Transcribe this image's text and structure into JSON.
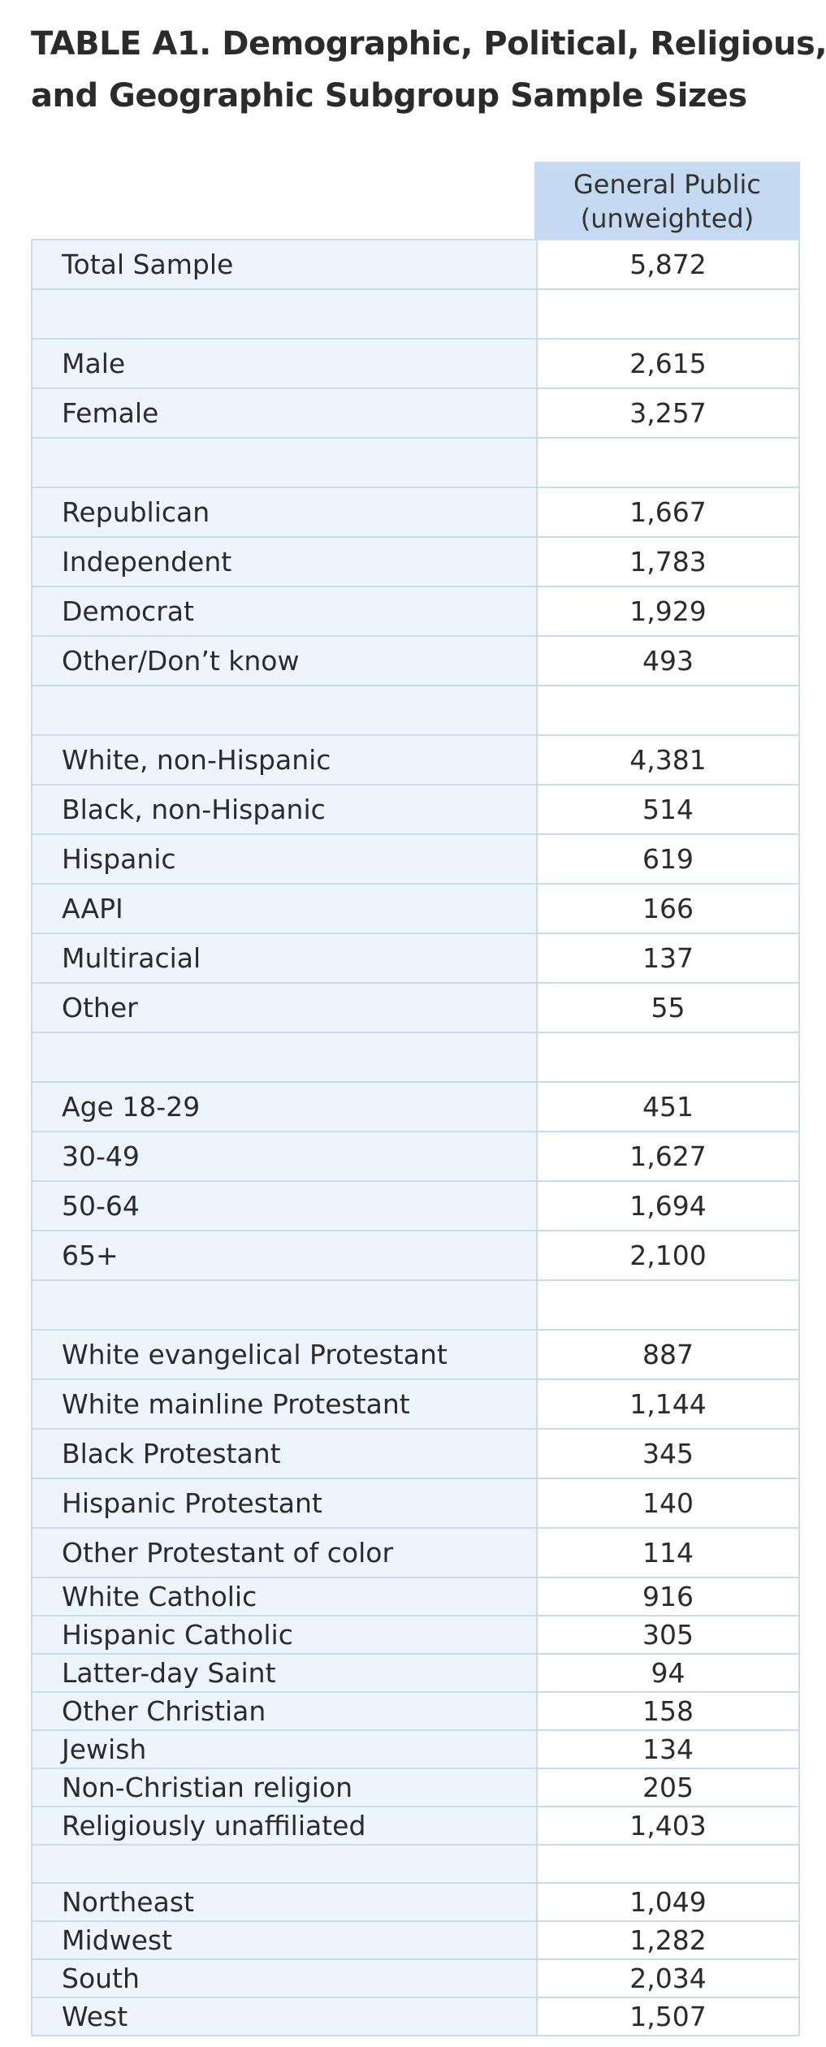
{
  "title": {
    "line1": "TABLE A1. Demographic, Political, Religious,",
    "line2": "and Geographic Subgroup Sample Sizes"
  },
  "column_header": {
    "line1": "General Public",
    "line2": "(unweighted)"
  },
  "colors": {
    "header_fill": "#c5daf0",
    "row_fill": "#eef4fc",
    "border": "#c9dbee"
  },
  "rows": [
    {
      "label": "Total Sample",
      "value": "5,872"
    },
    {
      "label": "",
      "value": ""
    },
    {
      "label": "Male",
      "value": "2,615"
    },
    {
      "label": "Female",
      "value": "3,257"
    },
    {
      "label": "",
      "value": ""
    },
    {
      "label": "Republican",
      "value": "1,667"
    },
    {
      "label": "Independent",
      "value": "1,783"
    },
    {
      "label": "Democrat",
      "value": "1,929"
    },
    {
      "label": "Other/Don’t know",
      "value": "493"
    },
    {
      "label": "",
      "value": ""
    },
    {
      "label": "White, non-Hispanic",
      "value": "4,381"
    },
    {
      "label": "Black, non-Hispanic",
      "value": "514"
    },
    {
      "label": "Hispanic",
      "value": "619"
    },
    {
      "label": "AAPI",
      "value": "166"
    },
    {
      "label": "Multiracial",
      "value": "137"
    },
    {
      "label": "Other",
      "value": "55"
    },
    {
      "label": "",
      "value": ""
    },
    {
      "label": "Age 18-29",
      "value": "451"
    },
    {
      "label": "30-49",
      "value": "1,627"
    },
    {
      "label": "50-64",
      "value": "1,694"
    },
    {
      "label": "65+",
      "value": "2,100"
    },
    {
      "label": "",
      "value": ""
    },
    {
      "label": "White evangelical Protestant",
      "value": "887"
    },
    {
      "label": "White mainline Protestant",
      "value": "1,144"
    },
    {
      "label": "Black Protestant",
      "value": "345"
    },
    {
      "label": "Hispanic Protestant",
      "value": "140"
    },
    {
      "label": "Other Protestant of color",
      "value": "114"
    },
    {
      "label": "White Catholic",
      "value": "916"
    },
    {
      "label": "Hispanic Catholic",
      "value": "305"
    },
    {
      "label": "Latter-day Saint",
      "value": "94"
    },
    {
      "label": "Other Christian",
      "value": "158"
    },
    {
      "label": "Jewish",
      "value": "134"
    },
    {
      "label": "Non-Christian religion",
      "value": "205"
    },
    {
      "label": "Religiously unaffiliated",
      "value": "1,403"
    },
    {
      "label": "",
      "value": ""
    },
    {
      "label": "Northeast",
      "value": "1,049"
    },
    {
      "label": "Midwest",
      "value": "1,282"
    },
    {
      "label": "South",
      "value": "2,034"
    },
    {
      "label": "West",
      "value": "1,507"
    }
  ]
}
